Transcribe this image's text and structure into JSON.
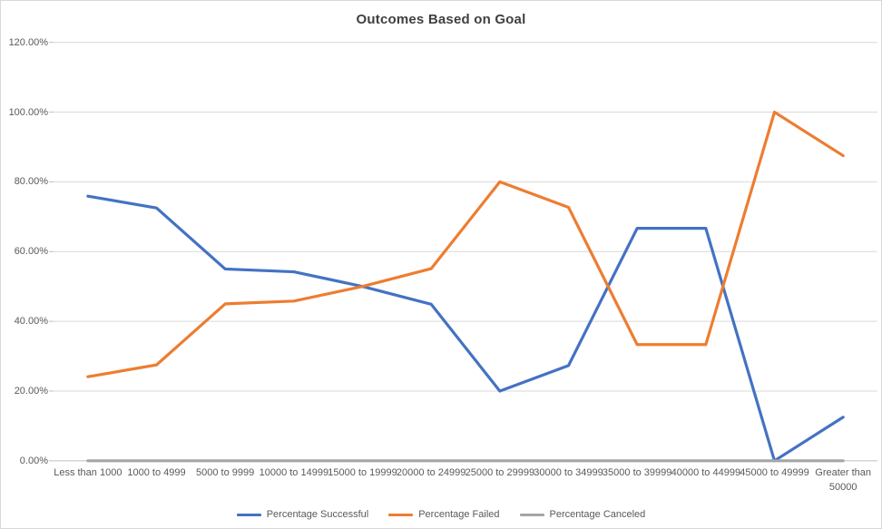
{
  "chart_data": {
    "type": "line",
    "title": "Outcomes Based on Goal",
    "categories": [
      "Less than 1000",
      "1000 to 4999",
      "5000 to 9999",
      "10000 to 14999",
      "15000 to 19999",
      "20000 to 24999",
      "25000 to 29999",
      "30000 to 34999",
      "35000 to 39999",
      "40000 to 44999",
      "45000 to 49999",
      "Greater than 50000"
    ],
    "series": [
      {
        "name": "Percentage Successful",
        "color": "#4472C4",
        "values": [
          75.9,
          72.5,
          55.0,
          54.2,
          50.0,
          44.9,
          20.0,
          27.3,
          66.67,
          66.67,
          0.0,
          12.5
        ]
      },
      {
        "name": "Percentage Failed",
        "color": "#ED7D31",
        "values": [
          24.1,
          27.5,
          45.0,
          45.8,
          50.0,
          55.1,
          80.0,
          72.7,
          33.33,
          33.33,
          100.0,
          87.5
        ]
      },
      {
        "name": "Percentage Canceled",
        "color": "#A5A5A5",
        "values": [
          0,
          0,
          0,
          0,
          0,
          0,
          0,
          0,
          0,
          0,
          0,
          0
        ]
      }
    ],
    "y_axis": {
      "min": 0,
      "max": 120,
      "tick_step": 20,
      "tick_labels": [
        "0.00%",
        "20.00%",
        "40.00%",
        "60.00%",
        "80.00%",
        "100.00%",
        "120.00%"
      ]
    },
    "grid": true,
    "legend_position": "bottom",
    "style": {
      "gridline_color": "#D9D9D9",
      "axis_line_color": "#D0D0D0",
      "tick_color": "#BFBFBF",
      "label_color": "#595959",
      "title_color": "#404040",
      "background": "#FFFFFF"
    }
  }
}
